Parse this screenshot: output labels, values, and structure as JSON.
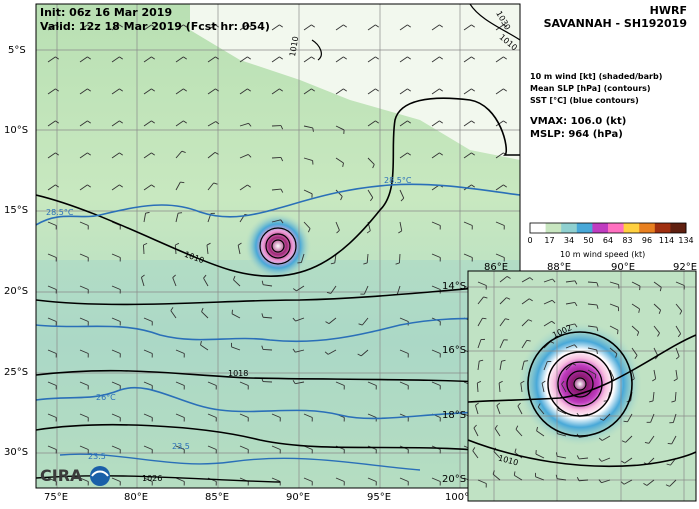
{
  "header": {
    "init": "Init:  06z 16 Mar 2019",
    "valid": "Valid: 12z 18 Mar 2019 (Fcst hr: 054)",
    "model": "HWRF",
    "storm": "SAVANNAH - SH192019"
  },
  "legend_lines": [
    "10 m wind [kt] (shaded/barb)",
    "Mean SLP [hPa] (contours)",
    "SST [°C] (blue contours)"
  ],
  "stats": {
    "vmax": "VMAX: 106.0 (kt)",
    "mslp": "MSLP:  964 (hPa)"
  },
  "colorbar": {
    "ticks": [
      "0",
      "17",
      "34",
      "50",
      "64",
      "83",
      "96",
      "114",
      "134"
    ],
    "label": "10 m wind speed (kt)",
    "colors": [
      "#ffffff",
      "#c8e6c0",
      "#8fd0d0",
      "#48a8d8",
      "#c03cc0",
      "#ff70c0",
      "#ffd040",
      "#e88020",
      "#a03010",
      "#602010"
    ]
  },
  "main_map": {
    "lat_ticks": [
      "5°S",
      "10°S",
      "15°S",
      "20°S",
      "25°S",
      "30°S"
    ],
    "lon_ticks": [
      "75°E",
      "80°E",
      "85°E",
      "90°E",
      "95°E",
      "100°"
    ],
    "slp_labels": [
      "1010",
      "1010",
      "1010",
      "1018",
      "1026",
      "1030"
    ],
    "sst_labels": [
      "28.5°C",
      "28.5°C",
      "26°C",
      "23.5",
      "23.5"
    ]
  },
  "inset_map": {
    "lon_ticks_top": [
      "86°E",
      "88°E",
      "90°E",
      "92°E"
    ],
    "lat_ticks": [
      "14°S",
      "16°S",
      "18°S",
      "20°S"
    ],
    "slp_labels": [
      "1002",
      "1010"
    ]
  },
  "logo_text": "CIRA"
}
